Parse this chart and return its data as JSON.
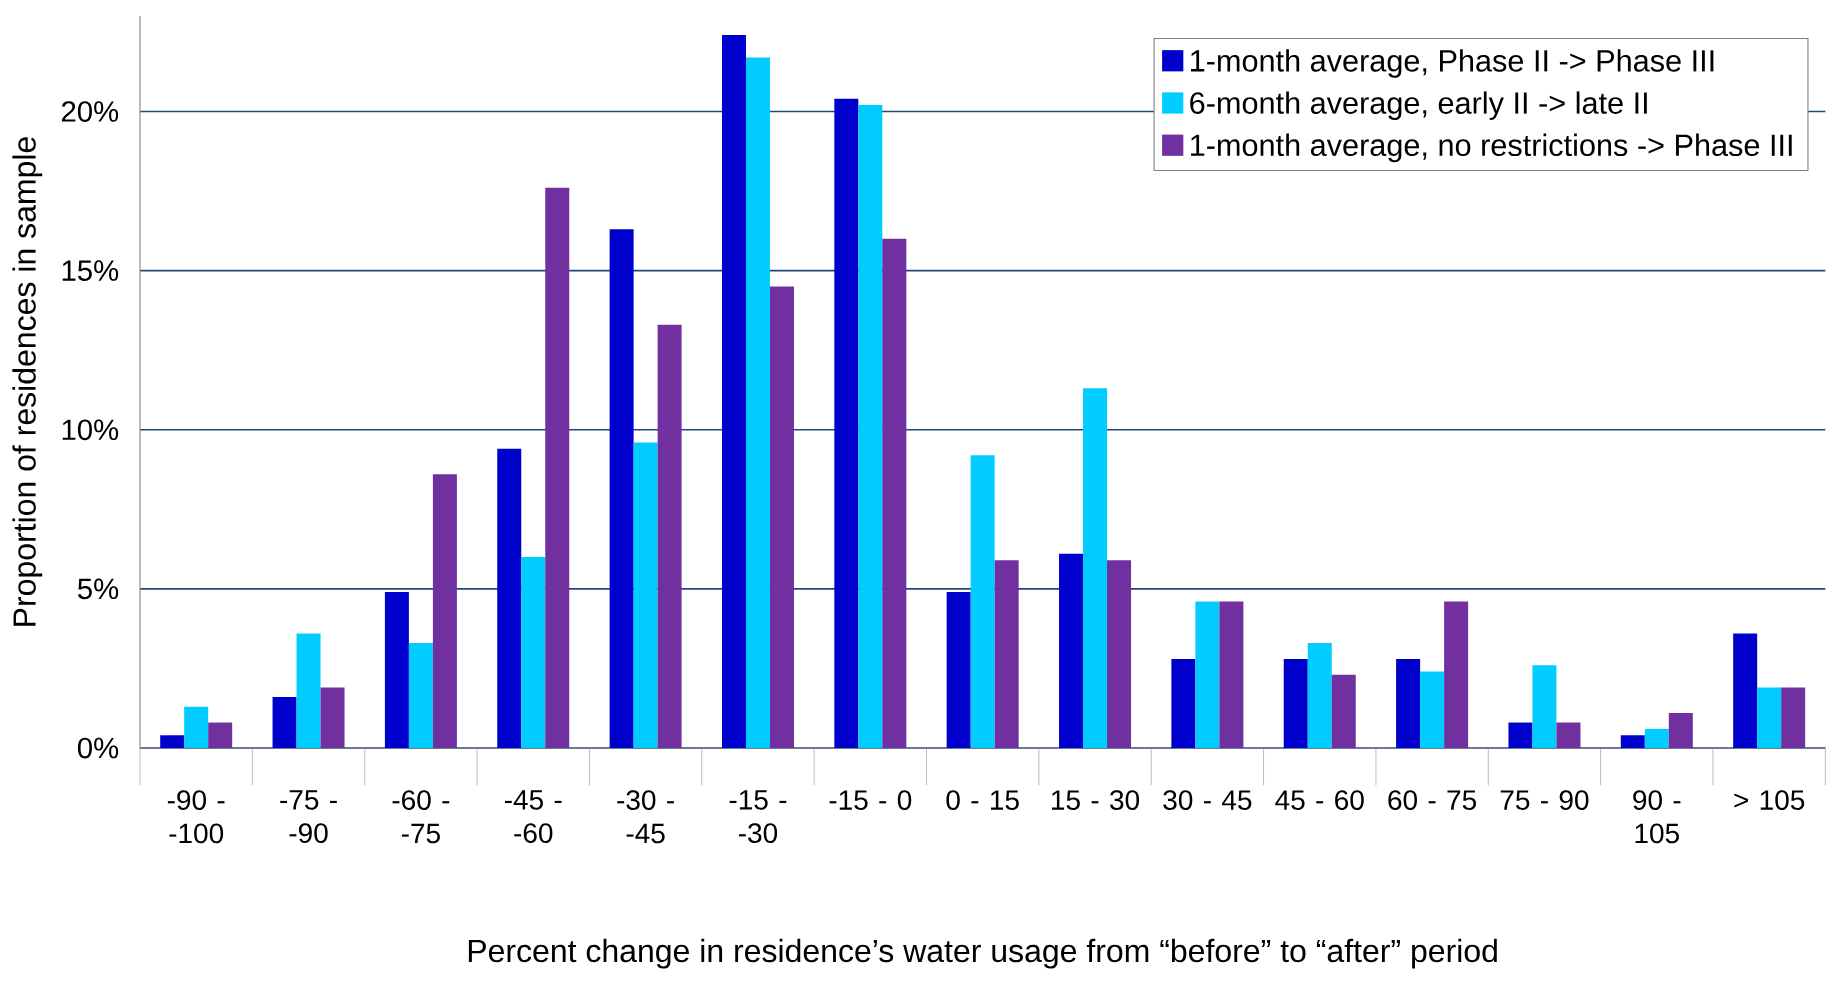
{
  "chart_data": {
    "type": "bar",
    "xlabel": "Percent change in residence’s water usage from “before” to “after” period",
    "ylabel": "Proportion of residences in sample",
    "categories": [
      "-90 - -100",
      "-75 - -90",
      "-60 - -75",
      "-45 - -60",
      "-30 - -45",
      "-15 - -30",
      "-15 - 0",
      "0 - 15",
      "15 - 30",
      "30 - 45",
      "45 - 60",
      "60 - 75",
      "75 - 90",
      "90 - 105",
      "> 105"
    ],
    "series": [
      {
        "name": "1-month average, Phase II -> Phase III",
        "color": "#0000cc",
        "values": [
          0.4,
          1.6,
          4.9,
          9.4,
          16.3,
          22.4,
          20.4,
          4.9,
          6.1,
          2.8,
          2.8,
          2.8,
          0.8,
          0.4,
          3.6
        ]
      },
      {
        "name": "6-month average, early II -> late II",
        "color": "#00ccff",
        "values": [
          1.3,
          3.6,
          3.3,
          6.0,
          9.6,
          21.7,
          20.2,
          9.2,
          11.3,
          4.6,
          3.3,
          2.4,
          2.6,
          0.6,
          1.9
        ]
      },
      {
        "name": "1-month average, no restrictions -> Phase III",
        "color": "#7030a0",
        "values": [
          0.8,
          1.9,
          8.6,
          17.6,
          13.3,
          14.5,
          16.0,
          5.9,
          5.9,
          4.6,
          2.3,
          4.6,
          0.8,
          1.1,
          1.9
        ]
      }
    ],
    "ylim": [
      0,
      23
    ],
    "yticks": [
      {
        "value": 0,
        "label": "0%"
      },
      {
        "value": 5,
        "label": "5%"
      },
      {
        "value": 10,
        "label": "10%"
      },
      {
        "value": 15,
        "label": "15%"
      },
      {
        "value": 20,
        "label": "20%"
      }
    ],
    "grid": "y",
    "legend": "top right"
  }
}
